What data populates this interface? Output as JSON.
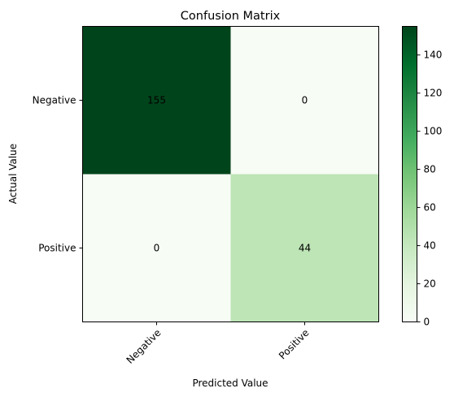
{
  "chart_data": {
    "type": "heatmap",
    "title": "Confusion Matrix",
    "xlabel": "Predicted Value",
    "ylabel": "Actual Value",
    "x_categories": [
      "Negative",
      "Positive"
    ],
    "y_categories": [
      "Negative",
      "Positive"
    ],
    "values": [
      [
        155,
        0
      ],
      [
        0,
        44
      ]
    ],
    "colormap": "Greens",
    "color_range": [
      0,
      155
    ],
    "colorbar_ticks": [
      0,
      20,
      40,
      60,
      80,
      100,
      120,
      140
    ],
    "x_tick_rotation": 45,
    "colors": {
      "low": "#f7fcf5",
      "high": "#00441b"
    }
  }
}
